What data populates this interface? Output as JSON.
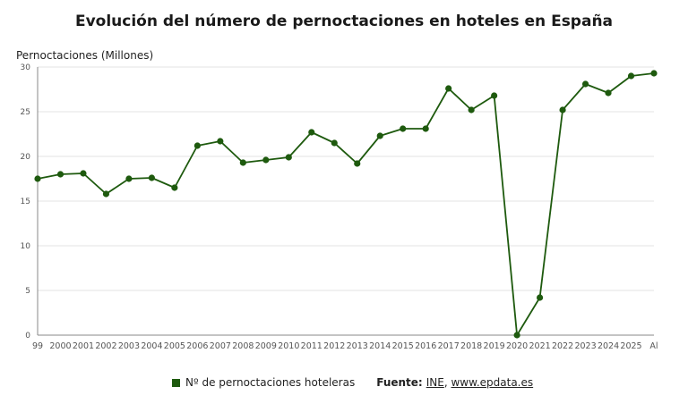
{
  "chart_data": {
    "type": "line",
    "title": "Evolución del número de pernoctaciones en hoteles en España",
    "ylabel": "Pernoctaciones (Millones)",
    "xlabel": "",
    "ylim": [
      0,
      30
    ],
    "yticks": [
      0,
      5,
      10,
      15,
      20,
      25,
      30
    ],
    "grid": true,
    "legend_position": "bottom",
    "categories": [
      "1999",
      "2000",
      "2001",
      "2002",
      "2003",
      "2004",
      "2005",
      "2006",
      "2007",
      "2008",
      "2009",
      "2010",
      "2011",
      "2012",
      "2013",
      "2014",
      "2015",
      "2016",
      "2017",
      "2018",
      "2019",
      "2020",
      "2021",
      "2022",
      "2023",
      "2024",
      "2025",
      "Al"
    ],
    "tick_labels": [
      "99",
      "2000",
      "2001",
      "2002",
      "2003",
      "2004",
      "2005",
      "2006",
      "2007",
      "2008",
      "2009",
      "2010",
      "2011",
      "2012",
      "2013",
      "2014",
      "2015",
      "2016",
      "2017",
      "2018",
      "2019",
      "2020",
      "2021",
      "2022",
      "2023",
      "2024",
      "2025",
      "Al"
    ],
    "series": [
      {
        "name": "Nº de pernoctaciones hoteleras",
        "color": "#1e5a0e",
        "values": [
          17.5,
          18.0,
          18.1,
          15.8,
          17.5,
          17.6,
          16.5,
          21.2,
          21.7,
          19.3,
          19.6,
          19.9,
          22.7,
          21.5,
          19.2,
          22.3,
          23.1,
          23.1,
          27.6,
          25.2,
          26.8,
          0.0,
          4.2,
          25.2,
          28.1,
          27.1,
          29.0,
          29.3
        ]
      }
    ]
  },
  "legend": {
    "label": "Nº de pernoctaciones hoteleras"
  },
  "source": {
    "label": "Fuente:",
    "ine": "INE",
    "separator": ",",
    "site": "www.epdata.es"
  },
  "colors": {
    "series": "#1e5a0e",
    "grid": "#e3e3e3",
    "axis": "#555555",
    "tick_text": "#555555"
  }
}
